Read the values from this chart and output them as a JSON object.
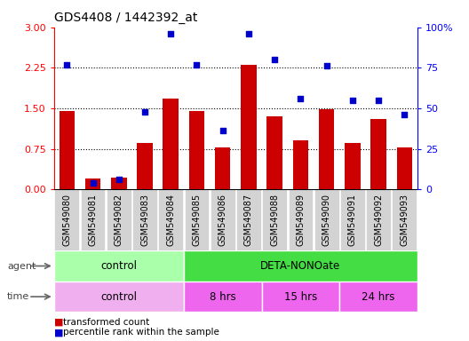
{
  "title": "GDS4408 / 1442392_at",
  "samples": [
    "GSM549080",
    "GSM549081",
    "GSM549082",
    "GSM549083",
    "GSM549084",
    "GSM549085",
    "GSM549086",
    "GSM549087",
    "GSM549088",
    "GSM549089",
    "GSM549090",
    "GSM549091",
    "GSM549092",
    "GSM549093"
  ],
  "bar_values": [
    1.45,
    0.2,
    0.22,
    0.85,
    1.68,
    1.45,
    0.78,
    2.3,
    1.35,
    0.9,
    1.48,
    0.85,
    1.3,
    0.78
  ],
  "dot_percentiles": [
    77,
    4,
    6,
    48,
    96,
    77,
    36,
    96,
    80,
    56,
    76,
    55,
    55,
    46
  ],
  "bar_color": "#cc0000",
  "dot_color": "#0000cc",
  "left_ylim": [
    0,
    3
  ],
  "left_yticks": [
    0,
    0.75,
    1.5,
    2.25,
    3
  ],
  "right_ylim": [
    0,
    100
  ],
  "right_yticks": [
    0,
    25,
    50,
    75,
    100
  ],
  "right_yticklabels": [
    "0",
    "25",
    "50",
    "75",
    "100%"
  ],
  "agent_segments": [
    {
      "label": "control",
      "start": 0,
      "end": 5,
      "color": "#aaffaa"
    },
    {
      "label": "DETA-NONOate",
      "start": 5,
      "end": 14,
      "color": "#44dd44"
    }
  ],
  "time_segments": [
    {
      "label": "control",
      "start": 0,
      "end": 5,
      "color": "#f0b0f0"
    },
    {
      "label": "8 hrs",
      "start": 5,
      "end": 8,
      "color": "#ee66ee"
    },
    {
      "label": "15 hrs",
      "start": 8,
      "end": 11,
      "color": "#ee66ee"
    },
    {
      "label": "24 hrs",
      "start": 11,
      "end": 14,
      "color": "#ee66ee"
    }
  ],
  "legend_items": [
    {
      "color": "#cc0000",
      "label": "transformed count"
    },
    {
      "color": "#0000cc",
      "label": "percentile rank within the sample"
    }
  ],
  "sample_bg_color": "#d3d3d3",
  "grid_yticks": [
    0.75,
    1.5,
    2.25
  ]
}
